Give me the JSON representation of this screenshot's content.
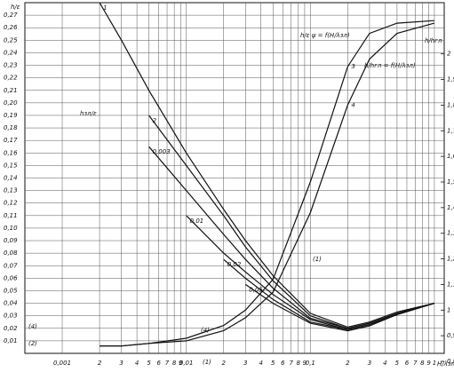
{
  "chart_data": {
    "type": "line",
    "y_label": "h/ε",
    "y2_label": "h/hгл",
    "x_label": "H/λзл",
    "annotations": [
      "h/ε ψ = f(H/λзл)",
      "h/hгл = f(H/λзл)",
      "hзл/ε",
      "(1)",
      "(1)",
      "(2)",
      "(4)",
      "(4)"
    ],
    "log_x": true,
    "grid": true,
    "color": "#111111",
    "x": [
      0.002,
      0.003,
      0.005,
      0.01,
      0.02,
      0.03,
      0.05,
      0.1,
      0.2,
      0.3,
      0.5,
      1
    ],
    "xlim": [
      0.0005,
      1.2
    ],
    "xticks": [
      {
        "value": 0.001,
        "label": "0,001"
      },
      {
        "value": 0.002,
        "label": "2"
      },
      {
        "value": 0.003,
        "label": "3"
      },
      {
        "value": 0.004,
        "label": "4"
      },
      {
        "value": 0.005,
        "label": "5"
      },
      {
        "value": 0.006,
        "label": "6"
      },
      {
        "value": 0.007,
        "label": "7"
      },
      {
        "value": 0.008,
        "label": "8"
      },
      {
        "value": 0.009,
        "label": "9"
      },
      {
        "value": 0.01,
        "label": "0,01"
      },
      {
        "value": 0.02,
        "label": "2"
      },
      {
        "value": 0.03,
        "label": "3"
      },
      {
        "value": 0.04,
        "label": "4"
      },
      {
        "value": 0.05,
        "label": "5"
      },
      {
        "value": 0.06,
        "label": "6"
      },
      {
        "value": 0.07,
        "label": "7"
      },
      {
        "value": 0.08,
        "label": "8"
      },
      {
        "value": 0.09,
        "label": "9"
      },
      {
        "value": 0.1,
        "label": "0,1"
      },
      {
        "value": 0.2,
        "label": "2"
      },
      {
        "value": 0.3,
        "label": "3"
      },
      {
        "value": 0.4,
        "label": "4"
      },
      {
        "value": 0.5,
        "label": "5"
      },
      {
        "value": 0.6,
        "label": "6"
      },
      {
        "value": 0.7,
        "label": "7"
      },
      {
        "value": 0.8,
        "label": "8"
      },
      {
        "value": 0.9,
        "label": "9"
      },
      1
    ],
    "ylim": [
      0,
      0.28
    ],
    "yticks": [
      {
        "value": 0.01,
        "label": "0,01"
      },
      {
        "value": 0.02,
        "label": "0,02"
      },
      {
        "value": 0.03,
        "label": "0,03"
      },
      {
        "value": 0.04,
        "label": "0,04"
      },
      {
        "value": 0.05,
        "label": "0,05"
      },
      {
        "value": 0.06,
        "label": "0,06"
      },
      {
        "value": 0.07,
        "label": "0,07"
      },
      {
        "value": 0.08,
        "label": "0,08"
      },
      {
        "value": 0.09,
        "label": "0,09"
      },
      {
        "value": 0.1,
        "label": "0,10"
      },
      {
        "value": 0.11,
        "label": "0,11"
      },
      {
        "value": 0.12,
        "label": "0,12"
      },
      {
        "value": 0.13,
        "label": "0,13"
      },
      {
        "value": 0.14,
        "label": "0,14"
      },
      {
        "value": 0.15,
        "label": "0,15"
      },
      {
        "value": 0.16,
        "label": "0,16"
      },
      {
        "value": 0.17,
        "label": "0,17"
      },
      {
        "value": 0.18,
        "label": "0,18"
      },
      {
        "value": 0.19,
        "label": "0,19"
      },
      {
        "value": 0.2,
        "label": "0,20"
      },
      {
        "value": 0.21,
        "label": "0,21"
      },
      {
        "value": 0.22,
        "label": "0,22"
      },
      {
        "value": 0.23,
        "label": "0,23"
      },
      {
        "value": 0.24,
        "label": "0,24"
      },
      {
        "value": 0.25,
        "label": "0,25"
      },
      {
        "value": 0.26,
        "label": "0,26"
      },
      {
        "value": 0.27,
        "label": "0,27"
      }
    ],
    "y2lim": [
      0.8,
      2.2
    ],
    "y2ticks": [
      {
        "value": 0.8,
        "label": "0,8"
      },
      {
        "value": 0.9,
        "label": "0,9"
      },
      1,
      {
        "value": 1.1,
        "label": "1,1"
      },
      {
        "value": 1.2,
        "label": "1,2"
      },
      {
        "value": 1.3,
        "label": "1,3"
      },
      {
        "value": 1.4,
        "label": "1,4"
      },
      {
        "value": 1.5,
        "label": "1,5"
      },
      {
        "value": 1.6,
        "label": "1,6"
      },
      {
        "value": 1.7,
        "label": "1,7"
      },
      {
        "value": 1.8,
        "label": "1,8"
      },
      {
        "value": 1.9,
        "label": "1,9"
      },
      2
    ],
    "series": [
      {
        "name": "1",
        "values": [
          0.28,
          0.25,
          0.21,
          0.16,
          0.115,
          0.09,
          0.062,
          0.032,
          0.021,
          0.025,
          0.033,
          0.04
        ]
      },
      {
        "name": "2",
        "values": [
          null,
          null,
          0.19,
          0.15,
          0.11,
          0.085,
          0.058,
          0.03,
          0.02,
          0.024,
          0.032,
          0.04
        ]
      },
      {
        "name": "0,003",
        "values": [
          null,
          null,
          0.165,
          0.13,
          0.095,
          0.075,
          0.052,
          0.028,
          0.02,
          0.024,
          0.032,
          0.04
        ]
      },
      {
        "name": "0,01",
        "values": [
          null,
          null,
          null,
          0.11,
          0.08,
          0.065,
          0.047,
          0.027,
          0.019,
          0.023,
          0.031,
          0.04
        ]
      },
      {
        "name": "0,02",
        "values": [
          null,
          null,
          null,
          null,
          0.075,
          0.06,
          0.043,
          0.025,
          0.019,
          0.023,
          0.031,
          0.04
        ]
      },
      {
        "name": "0,05",
        "values": [
          null,
          null,
          null,
          null,
          null,
          0.055,
          0.04,
          0.024,
          0.018,
          0.022,
          0.031,
          0.04
        ]
      },
      {
        "name": "3",
        "axis": "y2",
        "values": [
          0.86,
          0.86,
          0.87,
          0.89,
          0.94,
          1.0,
          1.12,
          1.5,
          1.95,
          2.08,
          2.12,
          2.13
        ]
      },
      {
        "name": "4",
        "axis": "y2",
        "values": [
          0.86,
          0.86,
          0.87,
          0.88,
          0.92,
          0.97,
          1.07,
          1.38,
          1.8,
          1.98,
          2.08,
          2.12
        ]
      }
    ]
  }
}
